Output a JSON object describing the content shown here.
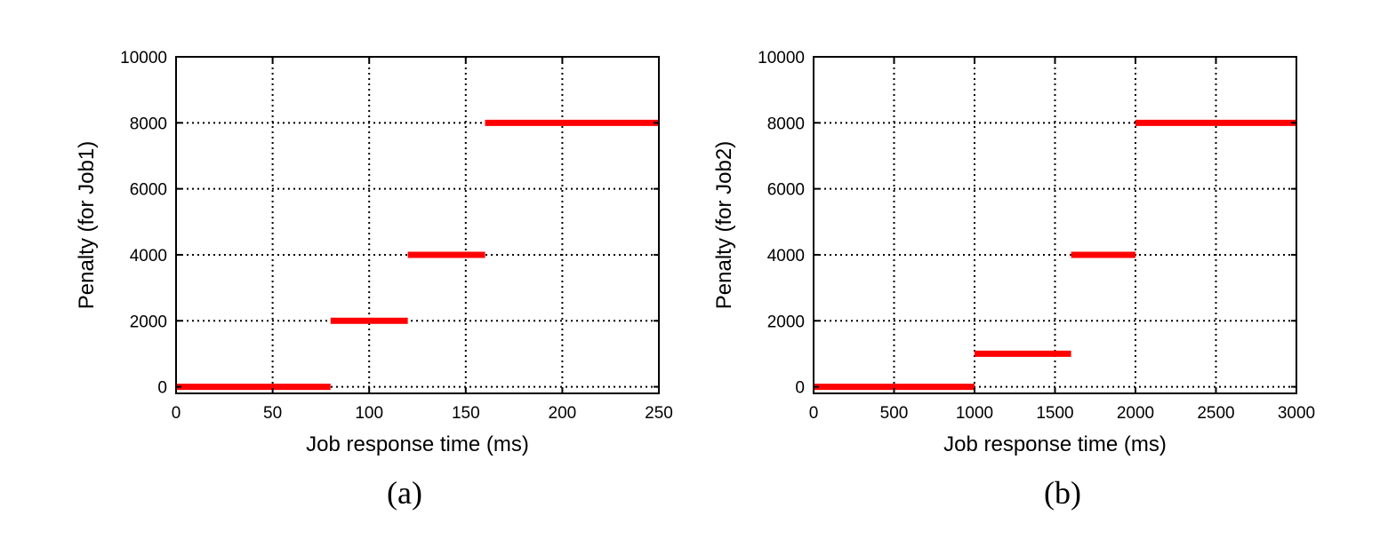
{
  "chart_data": [
    {
      "type": "line",
      "panel_label": "(a)",
      "xlabel": "Job response time (ms)",
      "ylabel": "Penalty (for Job1)",
      "xlim": [
        0,
        250
      ],
      "ylim": [
        -200,
        10000
      ],
      "xticks": [
        0,
        50,
        100,
        150,
        200,
        250
      ],
      "yticks": [
        0,
        2000,
        4000,
        6000,
        8000,
        10000
      ],
      "grid": true,
      "series_color": "#ff0000",
      "segments": [
        {
          "x_start": 0,
          "x_end": 80,
          "y": 0
        },
        {
          "x_start": 80,
          "x_end": 120,
          "y": 2000
        },
        {
          "x_start": 120,
          "x_end": 160,
          "y": 4000
        },
        {
          "x_start": 160,
          "x_end": 250,
          "y": 8000
        }
      ]
    },
    {
      "type": "line",
      "panel_label": "(b)",
      "xlabel": "Job response time (ms)",
      "ylabel": "Penalty (for Job2)",
      "xlim": [
        0,
        3000
      ],
      "ylim": [
        -200,
        10000
      ],
      "xticks": [
        0,
        500,
        1000,
        1500,
        2000,
        2500,
        3000
      ],
      "yticks": [
        0,
        2000,
        4000,
        6000,
        8000,
        10000
      ],
      "grid": true,
      "series_color": "#ff0000",
      "segments": [
        {
          "x_start": 0,
          "x_end": 1000,
          "y": 0
        },
        {
          "x_start": 1000,
          "x_end": 1600,
          "y": 1000
        },
        {
          "x_start": 1600,
          "x_end": 2000,
          "y": 4000
        },
        {
          "x_start": 2000,
          "x_end": 3000,
          "y": 8000
        }
      ]
    }
  ]
}
